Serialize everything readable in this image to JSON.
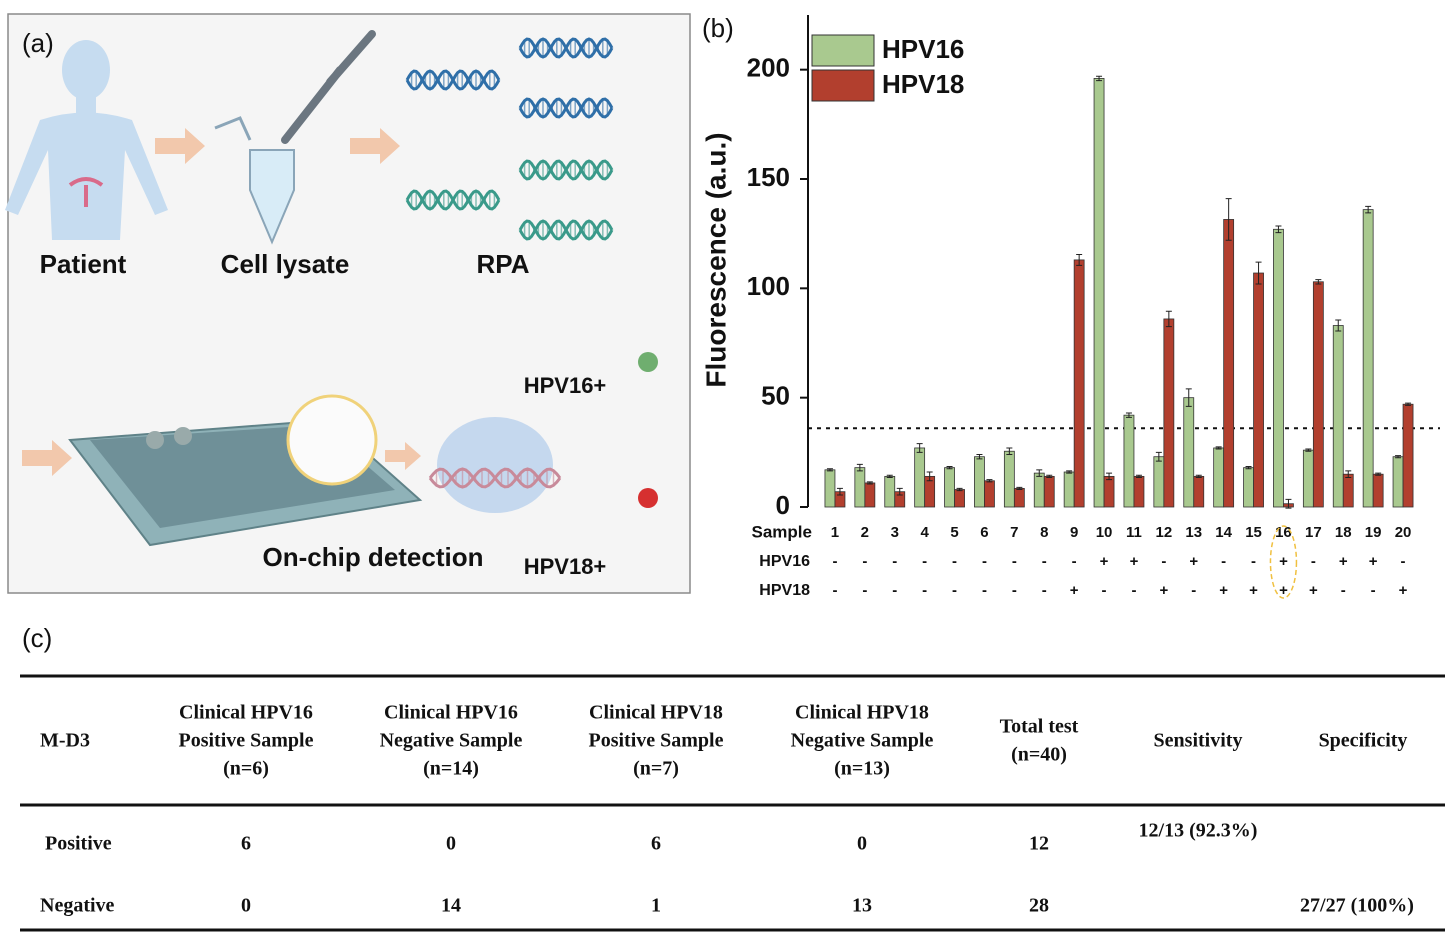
{
  "panel_a": {
    "label": "(a)",
    "steps": [
      "Patient",
      "Cell lysate",
      "RPA"
    ],
    "detection": "On-chip detection",
    "outputs": [
      "HPV16+",
      "HPV18+"
    ]
  },
  "chart_data": {
    "type": "bar",
    "label": "(b)",
    "ylabel": "Fluorescence (a.u.)",
    "category_label": "Sample",
    "categories": [
      "1",
      "2",
      "3",
      "4",
      "5",
      "6",
      "7",
      "8",
      "9",
      "10",
      "11",
      "12",
      "13",
      "14",
      "15",
      "16",
      "17",
      "18",
      "19",
      "20"
    ],
    "series": [
      {
        "name": "HPV16",
        "color": "#a9c98f",
        "values": [
          17,
          18,
          14,
          27,
          18,
          23,
          25.5,
          15.5,
          16,
          196,
          42,
          23,
          50,
          27,
          18,
          127,
          26,
          83,
          136,
          23
        ],
        "errors": [
          0.5,
          1.5,
          0.5,
          2,
          0.5,
          1,
          1.5,
          1.5,
          0.5,
          1,
          1,
          2,
          4,
          0.5,
          0.5,
          1.5,
          0.5,
          2.5,
          1.5,
          0.5
        ]
      },
      {
        "name": "HPV18",
        "color": "#b23f2e",
        "values": [
          7,
          11,
          7,
          14,
          8,
          12,
          8.5,
          14,
          113,
          14,
          14,
          86,
          14,
          131.5,
          107,
          1.5,
          103,
          15,
          15,
          47
        ],
        "errors": [
          1.5,
          0.5,
          1.5,
          2,
          0.5,
          0.5,
          0.5,
          0.5,
          2.5,
          1.5,
          0.5,
          3.5,
          0.5,
          9.5,
          5,
          2,
          1,
          1.5,
          0.5,
          0.5
        ]
      }
    ],
    "sign_rows": [
      {
        "name": "HPV16",
        "signs": [
          "-",
          "-",
          "-",
          "-",
          "-",
          "-",
          "-",
          "-",
          "-",
          "+",
          "+",
          "-",
          "+",
          "-",
          "-",
          "+",
          "-",
          "+",
          "+",
          "-"
        ]
      },
      {
        "name": "HPV18",
        "signs": [
          "-",
          "-",
          "-",
          "-",
          "-",
          "-",
          "-",
          "-",
          "+",
          "-",
          "-",
          "+",
          "-",
          "+",
          "+",
          "+",
          "+",
          "-",
          "-",
          "+"
        ]
      }
    ],
    "threshold": 36,
    "ylim": [
      0,
      225
    ],
    "yticks": [
      0,
      50,
      100,
      150,
      200
    ],
    "legend": "top-left",
    "error_bars": true
  },
  "panel_c": {
    "label": "(c)",
    "table": {
      "corner": "M-D3",
      "header": [
        [
          "Clinical HPV16",
          "Positive Sample",
          "(n=6)"
        ],
        [
          "Clinical HPV16",
          "Negative Sample",
          "(n=14)"
        ],
        [
          "Clinical HPV18",
          "Positive Sample",
          "(n=7)"
        ],
        [
          "Clinical  HPV18",
          "Negative Sample",
          "(n=13)"
        ],
        [
          "Total test",
          "(n=40)"
        ],
        [
          "Sensitivity"
        ],
        [
          "Specificity"
        ]
      ],
      "rows": [
        {
          "label": "Positive",
          "values": [
            6,
            0,
            6,
            0,
            12
          ],
          "sensitivity": "12/13 (92.3%)"
        },
        {
          "label": "Negative",
          "values": [
            0,
            14,
            1,
            13,
            28
          ],
          "specificity": "27/27 (100%)"
        }
      ]
    }
  }
}
